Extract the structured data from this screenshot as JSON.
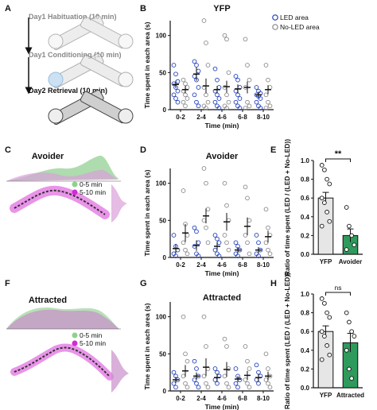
{
  "panels": {
    "A": {
      "label": "A",
      "steps": [
        "Day1 Habituation (10 min)",
        "Day1 Conditioning (10 min)",
        "Day2 Retrieval (10 min)"
      ]
    },
    "B": {
      "label": "B"
    },
    "C": {
      "label": "C",
      "title": "Avoider",
      "legend": [
        "0-5 min",
        "5-10 min"
      ]
    },
    "D": {
      "label": "D"
    },
    "E": {
      "label": "E"
    },
    "F": {
      "label": "F",
      "title": "Attracted",
      "legend": [
        "0-5 min",
        "5-10 min"
      ]
    },
    "G": {
      "label": "G"
    },
    "H": {
      "label": "H"
    }
  },
  "colors": {
    "led": "#1f3fbf",
    "noled": "#8a8a8a",
    "yfp_bar": "#e6e6e6",
    "green_bar": "#2e9a5b",
    "magenta": "#d42ad4",
    "green_dist": "#7dc77d"
  },
  "chart_data": [
    {
      "id": "B",
      "type": "scatter",
      "title": "YFP",
      "xlabel": "Time (min)",
      "ylabel": "Time spent in each area (s)",
      "categories": [
        "0-2",
        "2-4",
        "4-6",
        "6-8",
        "8-10"
      ],
      "ylim": [
        0,
        120
      ],
      "yticks": [
        0,
        50,
        100
      ],
      "legend": [
        "LED area",
        "No-LED area"
      ],
      "series": [
        {
          "name": "LED area",
          "mean": [
            34,
            48,
            27,
            28,
            20
          ],
          "sem": [
            5,
            9,
            5,
            6,
            4
          ],
          "points": [
            [
              60,
              48,
              38,
              35,
              30,
              25,
              20,
              15,
              10
            ],
            [
              65,
              60,
              52,
              45,
              40,
              30,
              20,
              10,
              5
            ],
            [
              55,
              40,
              30,
              25,
              20,
              15,
              10,
              5,
              2
            ],
            [
              45,
              40,
              30,
              25,
              20,
              15,
              10,
              5,
              2
            ],
            [
              30,
              25,
              22,
              20,
              18,
              15,
              10,
              5,
              2
            ]
          ]
        },
        {
          "name": "No-LED area",
          "mean": [
            27,
            32,
            31,
            30,
            27
          ],
          "sem": [
            5,
            10,
            8,
            8,
            6
          ],
          "points": [
            [
              40,
              35,
              30,
              25,
              20,
              15,
              10,
              5
            ],
            [
              120,
              90,
              60,
              30,
              20,
              10,
              5,
              2
            ],
            [
              100,
              95,
              50,
              30,
              20,
              10,
              5,
              2
            ],
            [
              95,
              60,
              40,
              30,
              10,
              5,
              2
            ],
            [
              60,
              40,
              30,
              20,
              10,
              5,
              2
            ]
          ]
        }
      ]
    },
    {
      "id": "D",
      "type": "scatter",
      "title": "Avoider",
      "xlabel": "Time (min)",
      "ylabel": "Time spent in each area (s)",
      "categories": [
        "0-2",
        "2-4",
        "4-6",
        "6-8",
        "8-10"
      ],
      "ylim": [
        0,
        120
      ],
      "yticks": [
        0,
        50,
        100
      ],
      "series": [
        {
          "name": "LED area",
          "mean": [
            12,
            16,
            15,
            10,
            10
          ],
          "sem": [
            6,
            7,
            6,
            4,
            4
          ],
          "points": [
            [
              30,
              15,
              10,
              5,
              2
            ],
            [
              40,
              35,
              20,
              15,
              5,
              2
            ],
            [
              30,
              25,
              20,
              10,
              5,
              2
            ],
            [
              20,
              15,
              10,
              5,
              2
            ],
            [
              30,
              20,
              10,
              5,
              2
            ]
          ]
        },
        {
          "name": "No-LED area",
          "mean": [
            33,
            56,
            48,
            42,
            28
          ],
          "sem": [
            12,
            10,
            12,
            12,
            8
          ],
          "points": [
            [
              90,
              45,
              30,
              20,
              10,
              5
            ],
            [
              120,
              100,
              65,
              50,
              40,
              20
            ],
            [
              100,
              70,
              50,
              30,
              20,
              10
            ],
            [
              95,
              80,
              50,
              30,
              20,
              5
            ],
            [
              65,
              40,
              30,
              20,
              10,
              5
            ]
          ]
        }
      ]
    },
    {
      "id": "E",
      "type": "bar",
      "ylabel": "Ratio of time spent (LED / (LED + No-LED))",
      "categories": [
        "YFP",
        "Avoider"
      ],
      "values": [
        0.6,
        0.2
      ],
      "sem": [
        0.06,
        0.07
      ],
      "ylim": [
        0,
        1.0
      ],
      "yticks": [
        0.0,
        0.2,
        0.4,
        0.6,
        0.8,
        1.0
      ],
      "points": [
        [
          0.95,
          0.9,
          0.8,
          0.75,
          0.6,
          0.55,
          0.45,
          0.35,
          0.3
        ],
        [
          0.5,
          0.3,
          0.2,
          0.1,
          0.05
        ]
      ],
      "significance": "**"
    },
    {
      "id": "G",
      "type": "scatter",
      "title": "Attracted",
      "xlabel": "Time (min)",
      "ylabel": "Time spent in each area (s)",
      "categories": [
        "0-2",
        "2-4",
        "4-6",
        "6-8",
        "8-10"
      ],
      "ylim": [
        0,
        120
      ],
      "yticks": [
        0,
        50,
        100
      ],
      "series": [
        {
          "name": "LED area",
          "mean": [
            15,
            20,
            18,
            16,
            18
          ],
          "sem": [
            4,
            5,
            5,
            4,
            5
          ],
          "points": [
            [
              25,
              20,
              15,
              10,
              5
            ],
            [
              40,
              30,
              20,
              15,
              10,
              5
            ],
            [
              30,
              25,
              20,
              15,
              10
            ],
            [
              30,
              20,
              15,
              10,
              5
            ],
            [
              35,
              25,
              20,
              15,
              10
            ]
          ]
        },
        {
          "name": "No-LED area",
          "mean": [
            27,
            32,
            29,
            21,
            20
          ],
          "sem": [
            8,
            12,
            10,
            6,
            6
          ],
          "points": [
            [
              100,
              50,
              40,
              20,
              10,
              5
            ],
            [
              100,
              60,
              30,
              20,
              10,
              5
            ],
            [
              70,
              60,
              30,
              20,
              10,
              5
            ],
            [
              60,
              40,
              30,
              15,
              10,
              5
            ],
            [
              50,
              30,
              20,
              15,
              10,
              5
            ]
          ]
        }
      ]
    },
    {
      "id": "H",
      "type": "bar",
      "ylabel": "Ratio of time spent (LED / (LED + No-LED))",
      "categories": [
        "YFP",
        "Attracted"
      ],
      "values": [
        0.6,
        0.48
      ],
      "sem": [
        0.06,
        0.1
      ],
      "ylim": [
        0,
        1.0
      ],
      "yticks": [
        0.0,
        0.2,
        0.4,
        0.6,
        0.8,
        1.0
      ],
      "points": [
        [
          0.95,
          0.9,
          0.8,
          0.75,
          0.6,
          0.55,
          0.45,
          0.35,
          0.3
        ],
        [
          0.8,
          0.7,
          0.6,
          0.55,
          0.4,
          0.2,
          0.1
        ]
      ],
      "significance": "ns"
    }
  ]
}
